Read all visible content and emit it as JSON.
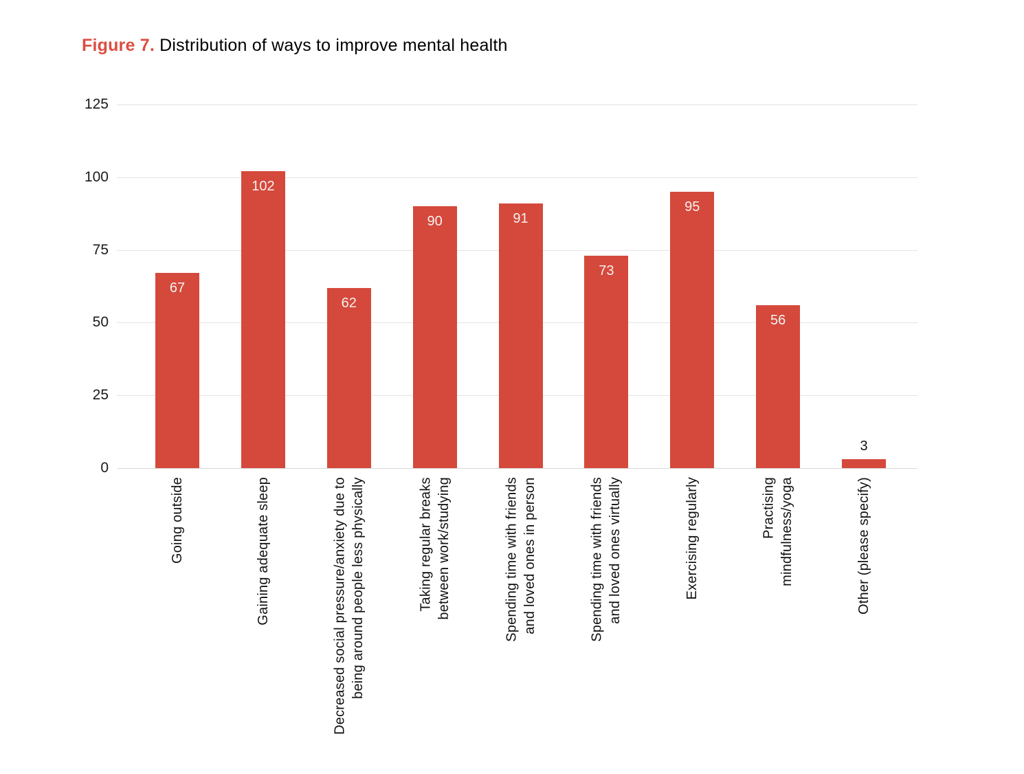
{
  "title": {
    "prefix": "Figure 7.",
    "text": " Distribution of ways to improve mental health",
    "prefix_color": "#dc4e41"
  },
  "chart_data": {
    "type": "bar",
    "title": "Figure 7. Distribution of ways to improve mental health",
    "categories": [
      "Going outside",
      "Gaining adequate sleep",
      "Decreased social pressure/anxiety due to\nbeing around people less physically",
      "Taking regular breaks\nbetween work/studying",
      "Spending time with friends\nand loved ones in person",
      "Spending time with friends\nand loved ones virtually",
      "Exercising regularly",
      "Practising\nmindfulness/yoga",
      "Other (please specify)"
    ],
    "values": [
      67,
      102,
      62,
      90,
      91,
      73,
      95,
      56,
      3
    ],
    "xlabel": "",
    "ylabel": "",
    "ylim": [
      0,
      125
    ],
    "y_ticks": [
      0,
      25,
      50,
      75,
      100,
      125
    ],
    "grid": true,
    "legend": "none",
    "bar_color": "#d4493c",
    "value_label_inside_color": "#f8f1ef",
    "value_label_outside_color": "#111111",
    "outside_label_threshold": 10
  }
}
